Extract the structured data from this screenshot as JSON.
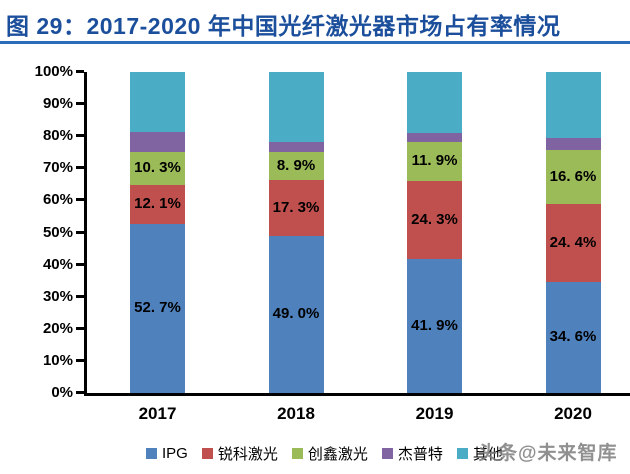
{
  "header": {
    "title": "图 29：2017-2020 年中国光纤激光器市场占有率情况"
  },
  "watermark": "头条@未来智库",
  "colors": {
    "title_blue": "#1b4f9c",
    "divider_blue": "#2b6cb8",
    "ipg_blue": "#4F81BD",
    "raycus_red": "#C0504D",
    "max_green": "#9BBB59",
    "jpt_purple": "#8064A2",
    "others_teal": "#4BACC6"
  },
  "chart_data": {
    "type": "bar",
    "stacked": true,
    "title": "2017-2020 年中国光纤激光器市场占有率情况",
    "xlabel": "",
    "ylabel": "",
    "ylim": [
      0,
      100
    ],
    "grid": false,
    "legend_position": "bottom",
    "categories": [
      "2017",
      "2018",
      "2019",
      "2020"
    ],
    "y_ticks": [
      "0%",
      "10%",
      "20%",
      "30%",
      "40%",
      "50%",
      "60%",
      "70%",
      "80%",
      "90%",
      "100%"
    ],
    "series": [
      {
        "name": "IPG",
        "color": "#4F81BD",
        "values": [
          52.7,
          49.0,
          41.9,
          34.6
        ],
        "labels": [
          "52. 7%",
          "49. 0%",
          "41. 9%",
          "34. 6%"
        ]
      },
      {
        "name": "锐科激光",
        "color": "#C0504D",
        "values": [
          12.1,
          17.3,
          24.3,
          24.4
        ],
        "labels": [
          "12. 1%",
          "17. 3%",
          "24. 3%",
          "24. 4%"
        ]
      },
      {
        "name": "创鑫激光",
        "color": "#9BBB59",
        "values": [
          10.3,
          8.9,
          11.9,
          16.6
        ],
        "labels": [
          "10. 3%",
          "8. 9%",
          "11. 9%",
          "16. 6%"
        ]
      },
      {
        "name": "杰普特",
        "color": "#8064A2",
        "values": [
          6.3,
          2.9,
          2.8,
          3.7
        ],
        "labels": null
      },
      {
        "name": "其他",
        "color": "#4BACC6",
        "values": [
          18.6,
          21.9,
          19.1,
          20.7
        ],
        "labels": null
      }
    ]
  }
}
